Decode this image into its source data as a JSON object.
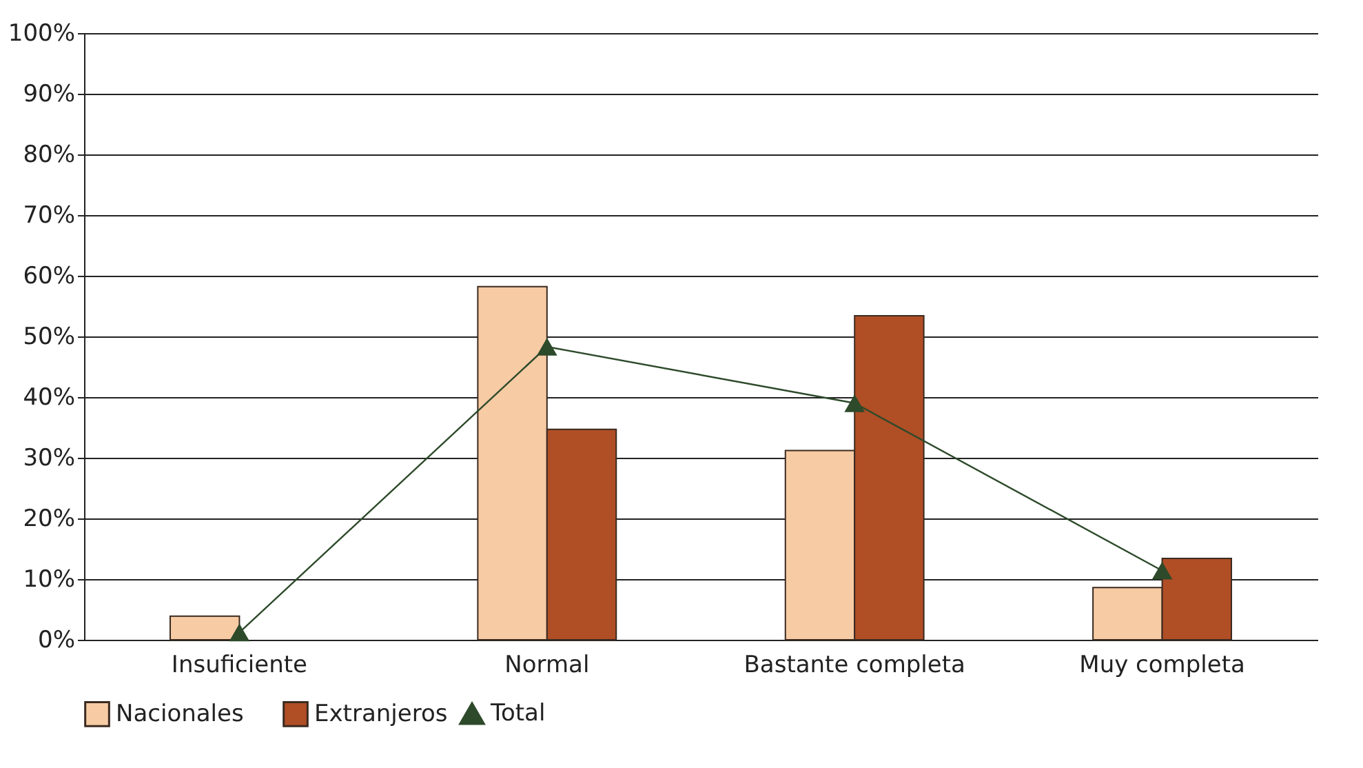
{
  "chart_data": {
    "type": "bar",
    "categories": [
      "Insuficiente",
      "Normal",
      "Bastante completa",
      "Muy completa"
    ],
    "series": [
      {
        "name": "Nacionales",
        "color": "#f7cba4",
        "values": [
          3.9,
          58.2,
          31.2,
          8.6
        ]
      },
      {
        "name": "Extranjeros",
        "color": "#b04e26",
        "values": [
          null,
          34.7,
          53.4,
          13.4
        ]
      },
      {
        "name": "Total",
        "color": "#2d4a2a",
        "type": "line",
        "marker": "triangle",
        "values": [
          1.2,
          48.3,
          39.0,
          11.4
        ]
      }
    ],
    "ylim": [
      0,
      100
    ],
    "yticks": [
      {
        "value": 0,
        "label": "0%"
      },
      {
        "value": 10,
        "label": "10%"
      },
      {
        "value": 20,
        "label": "20%"
      },
      {
        "value": 30,
        "label": "30%"
      },
      {
        "value": 40,
        "label": "40%"
      },
      {
        "value": 50,
        "label": "50%"
      },
      {
        "value": 60,
        "label": "60%"
      },
      {
        "value": 70,
        "label": "70%"
      },
      {
        "value": 80,
        "label": "80%"
      },
      {
        "value": 90,
        "label": "90%"
      },
      {
        "value": 100,
        "label": "100%"
      }
    ],
    "grid": "y",
    "legend": "bottom"
  }
}
